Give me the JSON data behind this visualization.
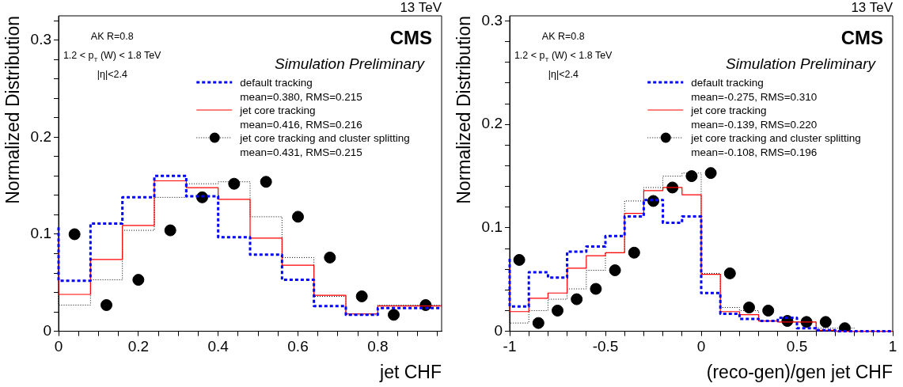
{
  "chart_data": [
    {
      "type": "step",
      "xlabel": "jet CHF",
      "ylabel": "Normalized Distribution",
      "legend": "top right",
      "grid": false,
      "annotations": [
        "13 TeV",
        "CMS",
        "Simulation Preliminary",
        "AK R=0.8",
        "1.2 < p$_{T}$ (W) < 1.8 TeV",
        "|η|<2.4"
      ],
      "xlim": [
        0,
        0.96
      ],
      "xticks": [
        0,
        {
          "value": 0.05,
          "label": null
        },
        {
          "value": 0.1,
          "label": null
        },
        {
          "value": 0.15,
          "label": null
        },
        0.2,
        {
          "value": 0.25,
          "label": null
        },
        {
          "value": 0.3,
          "label": null
        },
        {
          "value": 0.35,
          "label": null
        },
        0.4,
        {
          "value": 0.45,
          "label": null
        },
        {
          "value": 0.5,
          "label": null
        },
        {
          "value": 0.55,
          "label": null
        },
        0.6,
        {
          "value": 0.65,
          "label": null
        },
        {
          "value": 0.7,
          "label": null
        },
        {
          "value": 0.75,
          "label": null
        },
        0.8,
        {
          "value": 0.85,
          "label": null
        },
        {
          "value": 0.9,
          "label": null
        },
        {
          "value": 0.95,
          "label": null
        }
      ],
      "ylim": [
        0,
        0.325
      ],
      "yticks": [
        0,
        {
          "value": 0.02,
          "label": null
        },
        {
          "value": 0.04,
          "label": null
        },
        {
          "value": 0.06,
          "label": null
        },
        {
          "value": 0.08,
          "label": null
        },
        0.1,
        {
          "value": 0.12,
          "label": null
        },
        {
          "value": 0.14,
          "label": null
        },
        {
          "value": 0.16,
          "label": null
        },
        {
          "value": 0.18,
          "label": null
        },
        0.2,
        {
          "value": 0.22,
          "label": null
        },
        {
          "value": 0.24,
          "label": null
        },
        {
          "value": 0.26,
          "label": null
        },
        {
          "value": 0.28,
          "label": null
        },
        0.3,
        {
          "value": 0.32,
          "label": null
        }
      ],
      "series": [
        {
          "name": "default tracking\nmean=0.380, RMS=0.215",
          "color": "#0000ff",
          "line_style": "dashed",
          "x": [
            0,
            0.08,
            0.16,
            0.24,
            0.32,
            0.4,
            0.48,
            0.56,
            0.64,
            0.72,
            0.8,
            0.88,
            0.96
          ],
          "values": [
            0.107,
            0.052,
            0.111,
            0.138,
            0.16,
            0.139,
            0.097,
            0.079,
            0.053,
            0.026,
            0.017,
            0.024,
            0.024
          ]
        },
        {
          "name": "jet core tracking\nmean=0.416, RMS=0.216",
          "color": "#ff0000",
          "line_style": "solid",
          "x": [
            0,
            0.08,
            0.16,
            0.24,
            0.32,
            0.4,
            0.48,
            0.56,
            0.64,
            0.72,
            0.8,
            0.88,
            0.96
          ],
          "values": [
            0.096,
            0.038,
            0.074,
            0.109,
            0.155,
            0.148,
            0.136,
            0.096,
            0.068,
            0.037,
            0.018,
            0.026,
            0.026
          ]
        },
        {
          "color": "#000000",
          "line_style": "dotted",
          "x": [
            0,
            0.08,
            0.16,
            0.24,
            0.32,
            0.4,
            0.48,
            0.56,
            0.64,
            0.72,
            0.8,
            0.88,
            0.96
          ],
          "values": [
            0.1,
            0.027,
            0.053,
            0.104,
            0.138,
            0.152,
            0.154,
            0.118,
            0.076,
            0.036,
            0.017,
            0.027,
            0.027
          ]
        },
        {
          "type": "scatter",
          "name": "jet core tracking and cluster splitting\nmean=0.431, RMS=0.215",
          "color": "#000000",
          "marker": "circle",
          "line_style": "dotted",
          "x": [
            0.04,
            0.12,
            0.2,
            0.28,
            0.36,
            0.44,
            0.52,
            0.6,
            0.68,
            0.76,
            0.84,
            0.92
          ],
          "values": [
            0.1,
            0.027,
            0.053,
            0.104,
            0.138,
            0.152,
            0.154,
            0.118,
            0.076,
            0.036,
            0.017,
            0.027
          ]
        }
      ]
    },
    {
      "type": "step",
      "xlabel": "(reco-gen)/gen jet CHF",
      "ylabel": "Normalized Distribution",
      "legend": "top right",
      "grid": false,
      "annotations": [
        "13 TeV",
        "CMS",
        "Simulation Preliminary",
        "AK R=0.8",
        "1.2 < p$_{T}$ (W) < 1.8 TeV",
        "|η|<2.4"
      ],
      "xlim": [
        -1,
        1
      ],
      "xticks": [
        -1,
        {
          "value": -0.9,
          "label": null
        },
        {
          "value": -0.8,
          "label": null
        },
        {
          "value": -0.7,
          "label": null
        },
        {
          "value": -0.6,
          "label": null
        },
        -0.5,
        {
          "value": -0.4,
          "label": null
        },
        {
          "value": -0.3,
          "label": null
        },
        {
          "value": -0.2,
          "label": null
        },
        {
          "value": -0.1,
          "label": null
        },
        0,
        {
          "value": 0.1,
          "label": null
        },
        {
          "value": 0.2,
          "label": null
        },
        {
          "value": 0.3,
          "label": null
        },
        {
          "value": 0.4,
          "label": null
        },
        0.5,
        {
          "value": 0.6,
          "label": null
        },
        {
          "value": 0.7,
          "label": null
        },
        {
          "value": 0.8,
          "label": null
        },
        {
          "value": 0.9,
          "label": null
        },
        1
      ],
      "ylim": [
        0,
        0.305
      ],
      "yticks": [
        0,
        {
          "value": 0.02,
          "label": null
        },
        {
          "value": 0.04,
          "label": null
        },
        {
          "value": 0.06,
          "label": null
        },
        {
          "value": 0.08,
          "label": null
        },
        0.1,
        {
          "value": 0.12,
          "label": null
        },
        {
          "value": 0.14,
          "label": null
        },
        {
          "value": 0.16,
          "label": null
        },
        {
          "value": 0.18,
          "label": null
        },
        0.2,
        {
          "value": 0.22,
          "label": null
        },
        {
          "value": 0.24,
          "label": null
        },
        {
          "value": 0.26,
          "label": null
        },
        {
          "value": 0.28,
          "label": null
        },
        0.3
      ],
      "series": [
        {
          "name": "default tracking\nmean=-0.275, RMS=0.310",
          "color": "#0000ff",
          "line_style": "dashed",
          "x": [
            -1,
            -0.9,
            -0.8,
            -0.7,
            -0.6,
            -0.5,
            -0.4,
            -0.3,
            -0.2,
            -0.1,
            0,
            0.1,
            0.2,
            0.3,
            0.4,
            0.5,
            0.6,
            0.7,
            0.8,
            0.9,
            1
          ],
          "values": [
            0.07,
            0.024,
            0.057,
            0.052,
            0.077,
            0.082,
            0.092,
            0.111,
            0.127,
            0.105,
            0.111,
            0.037,
            0.017,
            0.012,
            0.01,
            0.013,
            0.003,
            0.001,
            0,
            0,
            0
          ]
        },
        {
          "name": "jet core tracking\nmean=-0.139, RMS=0.220",
          "color": "#ff0000",
          "line_style": "solid",
          "x": [
            -1,
            -0.9,
            -0.8,
            -0.7,
            -0.6,
            -0.5,
            -0.4,
            -0.3,
            -0.2,
            -0.1,
            0,
            0.1,
            0.2,
            0.3,
            0.4,
            0.5,
            0.6,
            0.7,
            0.8,
            0.9,
            1
          ],
          "values": [
            0.062,
            0.019,
            0.032,
            0.037,
            0.061,
            0.073,
            0.076,
            0.114,
            0.136,
            0.139,
            0.132,
            0.055,
            0.019,
            0.016,
            0.01,
            0.009,
            0.009,
            0.001,
            0,
            0,
            0
          ]
        },
        {
          "color": "#000000",
          "line_style": "dotted",
          "x": [
            -1,
            -0.9,
            -0.8,
            -0.7,
            -0.6,
            -0.5,
            -0.4,
            -0.3,
            -0.2,
            -0.1,
            0,
            0.1,
            0.2,
            0.3,
            0.4,
            0.5,
            0.6,
            0.7,
            0.8
          ],
          "values": [
            0.069,
            0.008,
            0.02,
            0.031,
            0.041,
            0.059,
            0.076,
            0.126,
            0.139,
            0.15,
            0.153,
            0.056,
            0.023,
            0.02,
            0.01,
            0.009,
            0.009,
            0.003,
            0.003
          ]
        },
        {
          "type": "scatter",
          "name": "jet core tracking and cluster splitting\nmean=-0.108, RMS=0.196",
          "color": "#000000",
          "marker": "circle",
          "line_style": "dotted",
          "x": [
            -0.95,
            -0.85,
            -0.75,
            -0.65,
            -0.55,
            -0.45,
            -0.35,
            -0.25,
            -0.15,
            -0.05,
            0.05,
            0.15,
            0.25,
            0.35,
            0.45,
            0.55,
            0.65,
            0.75
          ],
          "values": [
            0.069,
            0.008,
            0.02,
            0.031,
            0.041,
            0.059,
            0.076,
            0.126,
            0.139,
            0.15,
            0.153,
            0.056,
            0.023,
            0.02,
            0.01,
            0.009,
            0.009,
            0.003
          ]
        }
      ]
    }
  ]
}
